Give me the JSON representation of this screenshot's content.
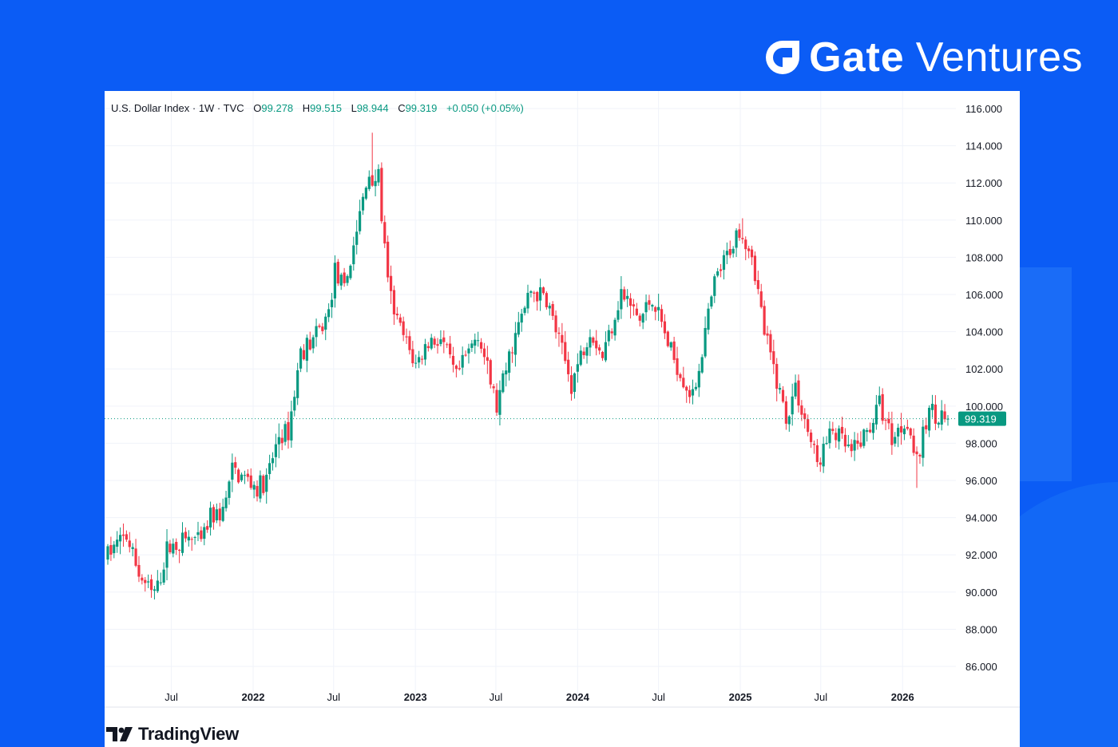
{
  "brand": {
    "name_bold": "Gate",
    "name_light": "Ventures",
    "icon": "gate-logo-icon",
    "background_color": "#0b5cf5"
  },
  "legend": {
    "symbol": "U.S. Dollar Index · 1W · TVC",
    "open_label": "O",
    "open": "99.278",
    "high_label": "H",
    "high": "99.515",
    "low_label": "L",
    "low": "98.944",
    "close_label": "C",
    "close": "99.319",
    "change": "+0.050 (+0.05%)"
  },
  "footer": {
    "logo_text": "TradingView",
    "icon": "tradingview-logo-icon"
  },
  "chart_data": {
    "type": "candlestick",
    "title": "",
    "interval": "1W",
    "up_color": "#089981",
    "down_color": "#f23645",
    "ylim": [
      84.5,
      116.6
    ],
    "y_ticks": [
      "116.000",
      "114.000",
      "112.000",
      "110.000",
      "108.000",
      "106.000",
      "104.000",
      "102.000",
      "100.000",
      "98.000",
      "96.000",
      "94.000",
      "92.000",
      "90.000",
      "88.000",
      "86.000"
    ],
    "x_ticks": [
      {
        "label": "Jul",
        "date": "2021-07-01",
        "year": false
      },
      {
        "label": "2022",
        "date": "2022-01-01",
        "year": true
      },
      {
        "label": "Jul",
        "date": "2022-07-01",
        "year": false
      },
      {
        "label": "2023",
        "date": "2023-01-01",
        "year": true
      },
      {
        "label": "Jul",
        "date": "2023-07-01",
        "year": false
      },
      {
        "label": "2024",
        "date": "2024-01-01",
        "year": true
      },
      {
        "label": "Jul",
        "date": "2024-07-01",
        "year": false
      },
      {
        "label": "2025",
        "date": "2025-01-01",
        "year": true
      },
      {
        "label": "Jul",
        "date": "2025-07-01",
        "year": false
      },
      {
        "label": "2026",
        "date": "2026-01-01",
        "year": true
      }
    ],
    "start_date": "2021-02-08",
    "end_date": "2026-04-13",
    "last_price": "99.319",
    "last_price_value": 99.319,
    "price_anchors": [
      [
        "2021-02-08",
        91.8
      ],
      [
        "2021-03-08",
        92.6
      ],
      [
        "2021-03-29",
        93.0
      ],
      [
        "2021-04-26",
        91.0
      ],
      [
        "2021-05-24",
        89.9
      ],
      [
        "2021-06-07",
        90.2
      ],
      [
        "2021-06-28",
        92.3
      ],
      [
        "2021-08-16",
        92.9
      ],
      [
        "2021-09-13",
        92.6
      ],
      [
        "2021-10-04",
        94.0
      ],
      [
        "2021-11-01",
        94.3
      ],
      [
        "2021-11-22",
        96.5
      ],
      [
        "2022-01-03",
        95.9
      ],
      [
        "2022-01-17",
        95.6
      ],
      [
        "2022-02-07",
        96.0
      ],
      [
        "2022-03-07",
        98.4
      ],
      [
        "2022-03-28",
        98.6
      ],
      [
        "2022-04-25",
        102.9
      ],
      [
        "2022-05-16",
        103.4
      ],
      [
        "2022-06-06",
        104.0
      ],
      [
        "2022-06-27",
        105.0
      ],
      [
        "2022-07-11",
        107.3
      ],
      [
        "2022-08-01",
        106.2
      ],
      [
        "2022-08-29",
        109.5
      ],
      [
        "2022-09-26",
        112.5
      ],
      [
        "2022-10-17",
        112.2
      ],
      [
        "2022-11-07",
        106.5
      ],
      [
        "2022-11-28",
        104.5
      ],
      [
        "2023-01-09",
        102.2
      ],
      [
        "2023-02-06",
        103.5
      ],
      [
        "2023-03-06",
        103.6
      ],
      [
        "2023-04-10",
        101.5
      ],
      [
        "2023-05-29",
        104.0
      ],
      [
        "2023-07-10",
        99.9
      ],
      [
        "2023-08-14",
        103.3
      ],
      [
        "2023-09-25",
        106.2
      ],
      [
        "2023-10-30",
        105.8
      ],
      [
        "2023-12-25",
        101.2
      ],
      [
        "2024-02-05",
        104.2
      ],
      [
        "2024-03-04",
        102.7
      ],
      [
        "2024-04-15",
        106.1
      ],
      [
        "2024-05-27",
        104.6
      ],
      [
        "2024-06-24",
        105.9
      ],
      [
        "2024-08-05",
        102.9
      ],
      [
        "2024-09-23",
        100.4
      ],
      [
        "2024-11-11",
        106.6
      ],
      [
        "2025-01-06",
        109.6
      ],
      [
        "2025-02-03",
        108.3
      ],
      [
        "2025-03-03",
        104.0
      ],
      [
        "2025-04-21",
        99.4
      ],
      [
        "2025-05-12",
        101.0
      ],
      [
        "2025-06-30",
        96.9
      ],
      [
        "2025-08-04",
        98.7
      ],
      [
        "2025-09-15",
        97.4
      ],
      [
        "2025-10-20",
        98.6
      ],
      [
        "2025-11-17",
        100.1
      ],
      [
        "2025-12-15",
        98.3
      ],
      [
        "2026-01-19",
        99.3
      ],
      [
        "2026-02-09",
        96.9
      ],
      [
        "2026-03-09",
        99.8
      ],
      [
        "2026-03-23",
        99.6
      ],
      [
        "2026-04-13",
        99.32
      ]
    ],
    "extremes": [
      [
        "2021-05-24",
        89.6,
        "low"
      ],
      [
        "2022-09-26",
        114.7,
        "high"
      ],
      [
        "2023-07-10",
        99.6,
        "low"
      ],
      [
        "2025-01-06",
        110.1,
        "high"
      ],
      [
        "2025-07-07",
        96.4,
        "low"
      ],
      [
        "2026-02-02",
        95.6,
        "low"
      ],
      [
        "2026-03-09",
        100.6,
        "high"
      ]
    ]
  }
}
